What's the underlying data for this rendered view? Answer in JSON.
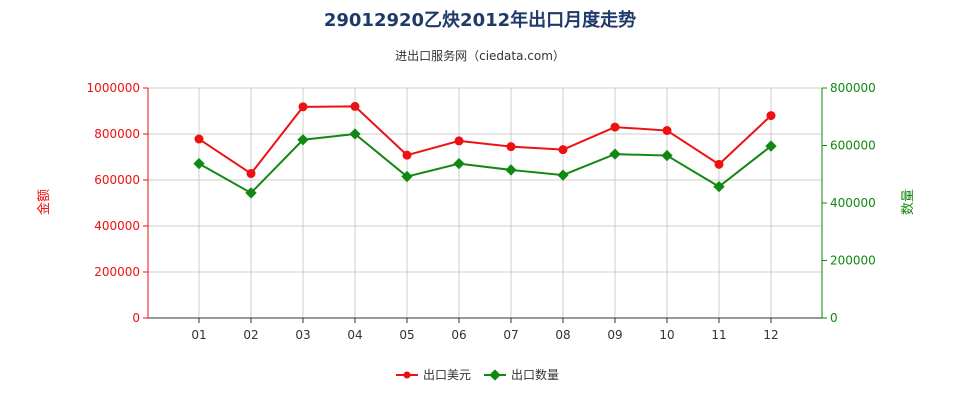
{
  "chart_data": {
    "type": "line",
    "title": "29012920乙炔2012年出口月度走势",
    "subtitle": "进出口服务网（ciedata.com）",
    "categories": [
      "01",
      "02",
      "03",
      "04",
      "05",
      "06",
      "07",
      "08",
      "09",
      "10",
      "11",
      "12"
    ],
    "series": [
      {
        "name": "出口美元",
        "axis": "left",
        "color": "#ee1111",
        "values": [
          778000,
          628000,
          918000,
          920000,
          708000,
          770000,
          745000,
          732000,
          830000,
          815000,
          668000,
          880000
        ]
      },
      {
        "name": "出口数量",
        "axis": "right",
        "color": "#118811",
        "values": [
          537000,
          435000,
          620000,
          640000,
          492000,
          537000,
          515000,
          497000,
          570000,
          565000,
          457000,
          598000
        ]
      }
    ],
    "ylabel_left": "金额",
    "ylabel_right": "数量",
    "ylim_left": [
      0,
      1000000
    ],
    "yticks_left": [
      "0",
      "200000",
      "400000",
      "600000",
      "800000",
      "1000000"
    ],
    "ylim_right": [
      0,
      800000
    ],
    "yticks_right": [
      "0",
      "200000",
      "400000",
      "600000",
      "800000"
    ],
    "left_axis_color": "#ee1111",
    "right_axis_color": "#118811",
    "grid": true,
    "legend_position": "bottom"
  }
}
